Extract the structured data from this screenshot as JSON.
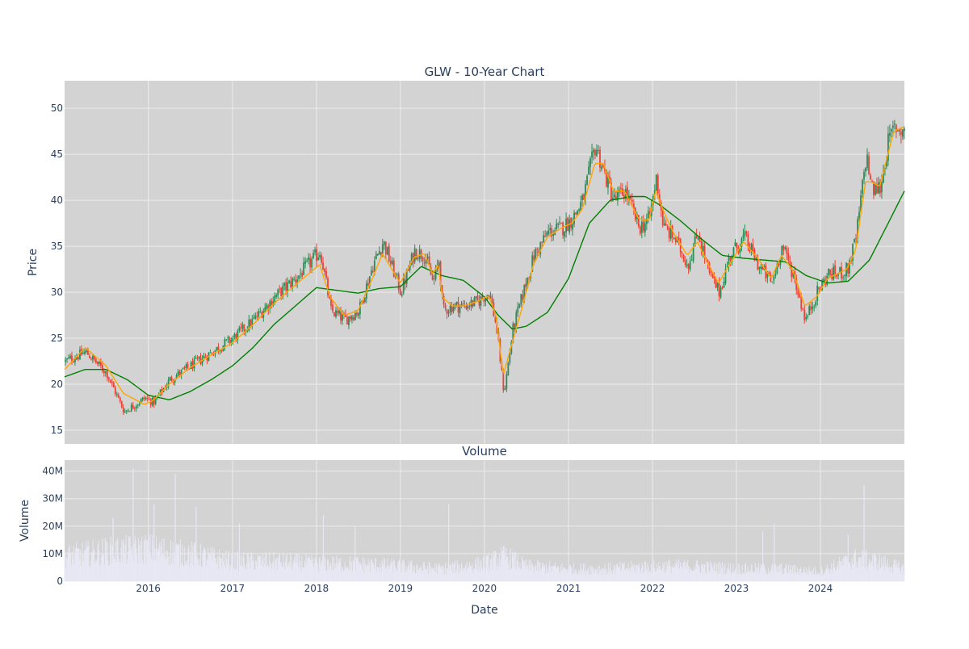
{
  "chart_data": [
    {
      "type": "candlestick",
      "title": "GLW - 10-Year Chart",
      "xlabel": "",
      "ylabel": "Price",
      "ylim": [
        13.5,
        53
      ],
      "xlim": [
        "2015-01-02",
        "2024-12-31"
      ],
      "yticks": [
        15,
        20,
        25,
        30,
        35,
        40,
        45,
        50
      ],
      "grid": true,
      "legend": "none",
      "colors": {
        "plot_bg": "#d3d3d3",
        "up": "#2e8b57",
        "down": "#e8433a",
        "ma_short": "#ffa500",
        "ma_long": "#008000",
        "grid": "#ececec",
        "title": "#2a3f5f"
      },
      "price_path": {
        "x": [
          "2015-01-02",
          "2015-04-01",
          "2015-07-01",
          "2015-09-15",
          "2015-12-15",
          "2016-01-20",
          "2016-04-01",
          "2016-07-01",
          "2016-10-01",
          "2017-01-01",
          "2017-04-01",
          "2017-07-01",
          "2017-10-01",
          "2018-01-15",
          "2018-03-01",
          "2018-05-01",
          "2018-07-01",
          "2018-09-01",
          "2018-10-15",
          "2018-12-31",
          "2019-03-01",
          "2019-04-15",
          "2019-05-20",
          "2019-06-15",
          "2019-07-01",
          "2019-08-15",
          "2019-10-01",
          "2019-12-01",
          "2020-01-20",
          "2020-02-20",
          "2020-03-23",
          "2020-05-01",
          "2020-06-15",
          "2020-08-01",
          "2020-10-01",
          "2020-12-01",
          "2021-01-15",
          "2021-03-01",
          "2021-04-25",
          "2021-06-01",
          "2021-07-15",
          "2021-09-01",
          "2021-11-01",
          "2021-12-15",
          "2022-01-15",
          "2022-02-15",
          "2022-04-01",
          "2022-06-01",
          "2022-07-15",
          "2022-09-01",
          "2022-10-15",
          "2022-12-01",
          "2023-02-01",
          "2023-04-01",
          "2023-06-01",
          "2023-07-15",
          "2023-09-01",
          "2023-10-25",
          "2023-12-15",
          "2024-02-01",
          "2024-03-15",
          "2024-04-25",
          "2024-06-01",
          "2024-07-15",
          "2024-08-10",
          "2024-09-15",
          "2024-10-15",
          "2024-11-15",
          "2024-12-31"
        ],
        "close": [
          22.5,
          23.5,
          21.2,
          17.0,
          18.5,
          18.0,
          20.5,
          22.0,
          23.5,
          25.0,
          27.0,
          29.5,
          31.5,
          34.5,
          28.0,
          27.0,
          28.0,
          33.0,
          35.5,
          30.0,
          34.5,
          34.0,
          31.0,
          33.5,
          28.0,
          28.5,
          28.5,
          29.0,
          30.0,
          26.0,
          19.0,
          26.0,
          30.0,
          34.0,
          36.5,
          37.0,
          38.0,
          40.0,
          46.0,
          43.0,
          40.0,
          41.0,
          37.0,
          38.0,
          42.5,
          37.0,
          36.0,
          33.0,
          36.5,
          32.0,
          30.0,
          34.0,
          36.0,
          33.0,
          31.0,
          35.0,
          32.0,
          27.0,
          30.0,
          32.0,
          32.0,
          32.5,
          36.0,
          45.0,
          41.0,
          41.5,
          46.0,
          48.0,
          47.5
        ]
      },
      "ma_short_path": {
        "x": [
          "2015-01-02",
          "2015-04-01",
          "2015-07-01",
          "2015-09-15",
          "2015-12-15",
          "2016-01-20",
          "2016-04-01",
          "2016-07-01",
          "2016-10-01",
          "2017-01-01",
          "2017-04-01",
          "2017-07-01",
          "2017-10-01",
          "2018-01-15",
          "2018-03-01",
          "2018-05-01",
          "2018-07-01",
          "2018-09-01",
          "2018-10-15",
          "2018-12-31",
          "2019-03-01",
          "2019-04-15",
          "2019-05-20",
          "2019-06-15",
          "2019-07-01",
          "2019-08-15",
          "2019-10-01",
          "2019-12-01",
          "2020-01-20",
          "2020-02-20",
          "2020-03-23",
          "2020-05-01",
          "2020-06-15",
          "2020-08-01",
          "2020-10-01",
          "2020-12-01",
          "2021-01-15",
          "2021-03-01",
          "2021-04-25",
          "2021-06-01",
          "2021-07-15",
          "2021-09-01",
          "2021-11-01",
          "2021-12-15",
          "2022-01-15",
          "2022-02-15",
          "2022-04-01",
          "2022-06-01",
          "2022-07-15",
          "2022-09-01",
          "2022-10-15",
          "2022-12-01",
          "2023-02-01",
          "2023-04-01",
          "2023-06-01",
          "2023-07-15",
          "2023-09-01",
          "2023-10-25",
          "2023-12-15",
          "2024-02-01",
          "2024-03-15",
          "2024-04-25",
          "2024-06-01",
          "2024-07-15",
          "2024-08-10",
          "2024-09-15",
          "2024-10-15",
          "2024-11-15",
          "2024-12-31"
        ],
        "y": [
          21.6,
          24.0,
          22.0,
          19.0,
          17.8,
          18.2,
          20.0,
          21.8,
          23.2,
          24.5,
          26.5,
          28.8,
          30.8,
          33.0,
          29.5,
          27.5,
          28.0,
          31.5,
          34.2,
          31.0,
          33.8,
          34.2,
          32.0,
          33.0,
          29.5,
          28.5,
          28.5,
          29.0,
          29.6,
          27.5,
          21.0,
          24.5,
          28.5,
          33.0,
          36.0,
          37.0,
          37.5,
          39.0,
          44.0,
          44.0,
          41.0,
          41.0,
          38.0,
          37.8,
          41.0,
          39.0,
          36.5,
          34.0,
          35.5,
          33.0,
          31.0,
          33.0,
          35.5,
          33.8,
          31.5,
          34.0,
          32.5,
          28.5,
          29.5,
          31.5,
          32.0,
          32.5,
          34.5,
          42.0,
          42.0,
          41.5,
          44.5,
          47.5,
          48.0
        ]
      },
      "ma_long_path": {
        "x": [
          "2015-01-02",
          "2015-04-01",
          "2015-07-01",
          "2015-10-01",
          "2016-01-01",
          "2016-04-01",
          "2016-07-01",
          "2016-10-01",
          "2017-01-01",
          "2017-04-01",
          "2017-07-01",
          "2017-10-01",
          "2018-01-01",
          "2018-04-01",
          "2018-07-01",
          "2018-10-01",
          "2019-01-01",
          "2019-04-01",
          "2019-07-01",
          "2019-10-01",
          "2020-01-01",
          "2020-03-01",
          "2020-05-01",
          "2020-07-01",
          "2020-10-01",
          "2021-01-01",
          "2021-04-01",
          "2021-07-01",
          "2021-10-01",
          "2021-12-01",
          "2022-02-01",
          "2022-05-01",
          "2022-08-01",
          "2022-11-01",
          "2023-02-01",
          "2023-05-01",
          "2023-08-01",
          "2023-11-01",
          "2024-02-01",
          "2024-05-01",
          "2024-08-01",
          "2024-10-01",
          "2024-12-31"
        ],
        "y": [
          20.8,
          21.6,
          21.6,
          20.5,
          18.8,
          18.3,
          19.2,
          20.5,
          22.0,
          24.0,
          26.5,
          28.5,
          30.5,
          30.2,
          29.9,
          30.4,
          30.6,
          32.8,
          31.8,
          31.3,
          29.5,
          27.5,
          26.0,
          26.3,
          27.8,
          31.5,
          37.5,
          40.0,
          40.4,
          40.4,
          39.5,
          37.8,
          35.8,
          34.0,
          33.7,
          33.5,
          33.3,
          31.8,
          31.0,
          31.2,
          33.5,
          36.5,
          41.0
        ]
      }
    },
    {
      "type": "bar",
      "title": "Volume",
      "xlabel": "Date",
      "ylabel": "Volume",
      "ylim": [
        0,
        44000000
      ],
      "yticks": [
        0,
        10000000,
        20000000,
        30000000,
        40000000
      ],
      "ytick_labels": [
        "0",
        "10M",
        "20M",
        "30M",
        "40M"
      ],
      "grid": true,
      "colors": {
        "bar": "#e8e8f5",
        "plot_bg": "#d3d3d3"
      },
      "volume_profile_M": {
        "x": [
          "2015-01-01",
          "2015-07-01",
          "2016-01-01",
          "2016-07-01",
          "2017-01-01",
          "2017-07-01",
          "2018-01-01",
          "2018-07-01",
          "2019-01-01",
          "2019-07-01",
          "2020-01-01",
          "2020-04-01",
          "2020-07-01",
          "2021-01-01",
          "2021-07-01",
          "2022-01-01",
          "2022-07-01",
          "2023-01-01",
          "2023-07-01",
          "2024-01-01",
          "2024-06-01",
          "2024-09-01",
          "2024-12-31"
        ],
        "base": [
          10,
          12,
          13,
          11,
          8,
          8,
          7,
          7,
          6,
          5,
          7,
          10,
          6,
          5,
          5,
          6,
          6,
          5,
          5,
          4,
          9,
          8,
          5
        ]
      },
      "spikes": [
        {
          "date": "2015-10-27",
          "volume_M": 41
        },
        {
          "date": "2016-04-27",
          "volume_M": 39
        },
        {
          "date": "2016-07-27",
          "volume_M": 27
        },
        {
          "date": "2016-01-26",
          "volume_M": 28
        },
        {
          "date": "2019-07-30",
          "volume_M": 28
        },
        {
          "date": "2024-07-09",
          "volume_M": 35
        },
        {
          "date": "2015-08-01",
          "volume_M": 23
        },
        {
          "date": "2018-01-31",
          "volume_M": 24
        },
        {
          "date": "2017-01-31",
          "volume_M": 21
        },
        {
          "date": "2018-06-18",
          "volume_M": 20
        },
        {
          "date": "2023-04-25",
          "volume_M": 18
        },
        {
          "date": "2023-06-14",
          "volume_M": 21
        },
        {
          "date": "2024-04-30",
          "volume_M": 17
        }
      ]
    }
  ],
  "x_axis": {
    "tick_dates": [
      "2016-01-01",
      "2017-01-01",
      "2018-01-01",
      "2019-01-01",
      "2020-01-01",
      "2021-01-01",
      "2022-01-01",
      "2023-01-01",
      "2024-01-01"
    ],
    "tick_labels": [
      "2016",
      "2017",
      "2018",
      "2019",
      "2020",
      "2021",
      "2022",
      "2023",
      "2024"
    ]
  }
}
